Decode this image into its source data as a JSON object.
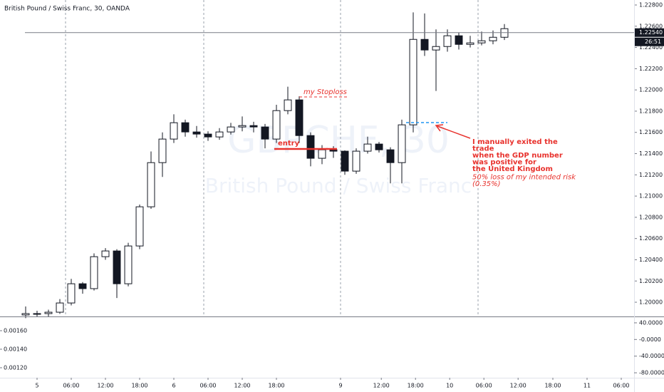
{
  "chart_data": [
    {
      "type": "candlestick",
      "title": "British Pound / Swiss Franc, 30, OANDA",
      "watermark": "GBPCHF, 30",
      "watermark_subtitle": "British Pound / Swiss Franc",
      "x": [
        -2,
        0,
        2,
        4,
        6,
        8,
        10,
        12,
        14,
        16,
        18,
        20,
        22,
        24,
        26,
        28,
        30,
        32,
        34,
        36,
        38,
        40,
        42,
        44,
        46,
        48,
        50,
        52,
        54,
        56,
        58,
        60,
        62,
        64,
        66,
        68,
        70,
        72,
        74,
        76,
        78,
        80,
        82
      ],
      "open": [
        1.1988,
        1.19893,
        1.19893,
        1.19906,
        1.19993,
        1.20174,
        1.20128,
        1.20429,
        1.20483,
        1.20174,
        1.2053,
        1.20899,
        1.21315,
        1.21537,
        1.21691,
        1.21604,
        1.21584,
        1.21557,
        1.21604,
        1.21651,
        1.21664,
        1.21651,
        1.21537,
        1.21805,
        1.21906,
        1.2157,
        1.21356,
        1.21436,
        1.21423,
        1.21235,
        1.21423,
        1.2149,
        1.21436,
        1.21315,
        1.21671,
        1.22476,
        1.22376,
        1.22409,
        1.2251,
        1.22429,
        1.22443,
        1.22463,
        1.22496
      ],
      "high": [
        1.1996,
        1.1992,
        1.1993,
        1.2003,
        1.2022,
        1.2019,
        1.2046,
        1.2051,
        1.205,
        1.2056,
        1.2092,
        1.2142,
        1.216,
        1.2177,
        1.2172,
        1.2166,
        1.2161,
        1.2164,
        1.2169,
        1.2175,
        1.217,
        1.2168,
        1.2186,
        1.2203,
        1.2194,
        1.216,
        1.2148,
        1.2147,
        1.2143,
        1.2145,
        1.2156,
        1.2151,
        1.2146,
        1.2172,
        1.2273,
        1.2272,
        1.2257,
        1.2257,
        1.2254,
        1.2251,
        1.2255,
        1.2256,
        1.2262
      ],
      "low": [
        1.1985,
        1.1986,
        1.1986,
        1.1989,
        1.1997,
        1.2008,
        1.2011,
        1.204,
        1.2004,
        1.2015,
        1.205,
        1.2088,
        1.2118,
        1.215,
        1.2156,
        1.2155,
        1.2152,
        1.2153,
        1.2158,
        1.2161,
        1.216,
        1.2145,
        1.215,
        1.2177,
        1.215,
        1.2128,
        1.213,
        1.2136,
        1.212,
        1.2121,
        1.214,
        1.2141,
        1.2112,
        1.2112,
        1.216,
        1.2232,
        1.2199,
        1.2236,
        1.2238,
        1.224,
        1.2242,
        1.2243,
        1.2247
      ],
      "close": [
        1.19893,
        1.19893,
        1.19906,
        1.19993,
        1.20174,
        1.20128,
        1.20429,
        1.20483,
        1.20174,
        1.2053,
        1.20899,
        1.21315,
        1.21537,
        1.21691,
        1.21604,
        1.21584,
        1.21557,
        1.21604,
        1.21651,
        1.21664,
        1.21651,
        1.21537,
        1.21805,
        1.21906,
        1.2157,
        1.21356,
        1.21436,
        1.21423,
        1.21235,
        1.21423,
        1.2149,
        1.21436,
        1.21315,
        1.21671,
        1.22476,
        1.22376,
        1.22409,
        1.2251,
        1.22429,
        1.22443,
        1.22463,
        1.22496,
        1.22577
      ],
      "up_color": "#ffffff",
      "down_color": "#131722",
      "xlim": [
        -6.5,
        104.75
      ],
      "xticks": [
        {
          "value": 0,
          "label": "5"
        },
        {
          "value": 6,
          "label": "06:00"
        },
        {
          "value": 12,
          "label": "12:00"
        },
        {
          "value": 18,
          "label": "18:00"
        },
        {
          "value": 24,
          "label": "6"
        },
        {
          "value": 30,
          "label": "06:00"
        },
        {
          "value": 36,
          "label": "12:00"
        },
        {
          "value": 42,
          "label": "18:00"
        },
        {
          "value": 53.25,
          "label": "9"
        },
        {
          "value": 60.4,
          "label": "12:00"
        },
        {
          "value": 66.4,
          "label": "18:00"
        },
        {
          "value": 72.4,
          "label": "10"
        },
        {
          "value": 78.4,
          "label": "06:00"
        },
        {
          "value": 84.4,
          "label": "12:00"
        },
        {
          "value": 90.5,
          "label": "18:00"
        },
        {
          "value": 96.5,
          "label": "11"
        },
        {
          "value": 102.5,
          "label": "06:00"
        }
      ],
      "ylim": [
        1.19866,
        1.22847
      ],
      "yticks": [
        {
          "value": 1.2,
          "label": "1.20000"
        },
        {
          "value": 1.202,
          "label": "1.20200"
        },
        {
          "value": 1.204,
          "label": "1.20400"
        },
        {
          "value": 1.206,
          "label": "1.20600"
        },
        {
          "value": 1.208,
          "label": "1.20800"
        },
        {
          "value": 1.21,
          "label": "1.21000"
        },
        {
          "value": 1.212,
          "label": "1.21200"
        },
        {
          "value": 1.214,
          "label": "1.21400"
        },
        {
          "value": 1.216,
          "label": "1.21600"
        },
        {
          "value": 1.218,
          "label": "1.21800"
        },
        {
          "value": 1.22,
          "label": "1.22000"
        },
        {
          "value": 1.222,
          "label": "1.22200"
        },
        {
          "value": 1.224,
          "label": "1.22400"
        },
        {
          "value": 1.226,
          "label": "1.22600"
        },
        {
          "value": 1.228,
          "label": "1.22800"
        }
      ],
      "last_price": {
        "value": 1.2254,
        "label": "1.22540"
      },
      "countdown": "26:51",
      "annotations": {
        "stoploss": "my Stoploss",
        "entry": "entry",
        "exit_lines": [
          "I manually exited the",
          "trade",
          "when the GDP number",
          "was positive for",
          "the United Kingdom"
        ],
        "loss_lines": [
          "50% loss of my intended risk",
          "(0.35%)"
        ]
      }
    },
    {
      "type": "indicator",
      "ylim": [
        0.001092,
        0.001746
      ],
      "yticks": [
        {
          "value": 0.0016,
          "label": "0.00160"
        },
        {
          "value": 0.0014,
          "label": "0.00140"
        },
        {
          "value": 0.0012,
          "label": "0.00120"
        }
      ],
      "y2lim": [
        -91.9,
        53.6
      ],
      "y2ticks": [
        {
          "value": 40,
          "label": "40.0000"
        },
        {
          "value": 0,
          "label": "-0.0000"
        },
        {
          "value": -40,
          "label": "-40.0000"
        },
        {
          "value": -80,
          "label": "-80.0000"
        }
      ]
    }
  ]
}
